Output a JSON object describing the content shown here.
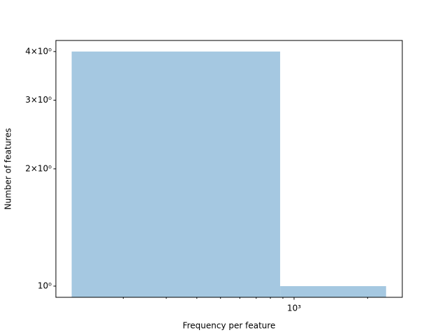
{
  "chart_data": {
    "type": "histogram",
    "xlabel": "Frequency per feature",
    "ylabel": "Number of features",
    "bins": [
      123,
      877,
      2380
    ],
    "counts": [
      4,
      1
    ],
    "color": "#a5c8e1",
    "xscale": "log",
    "yscale": "log",
    "xlim": [
      106,
      2773
    ],
    "ylim": [
      0.936,
      4.27
    ],
    "xticks": [
      {
        "value": 1000,
        "label": "10³"
      }
    ],
    "xminorticks": [
      200,
      300,
      400,
      500,
      600,
      700,
      800,
      900,
      2000
    ],
    "yticks": [
      {
        "value": 1,
        "label": "10⁰"
      },
      {
        "value": 2,
        "label": "2×10⁰"
      },
      {
        "value": 3,
        "label": "3×10⁰"
      },
      {
        "value": 4,
        "label": "4×10⁰"
      }
    ]
  }
}
